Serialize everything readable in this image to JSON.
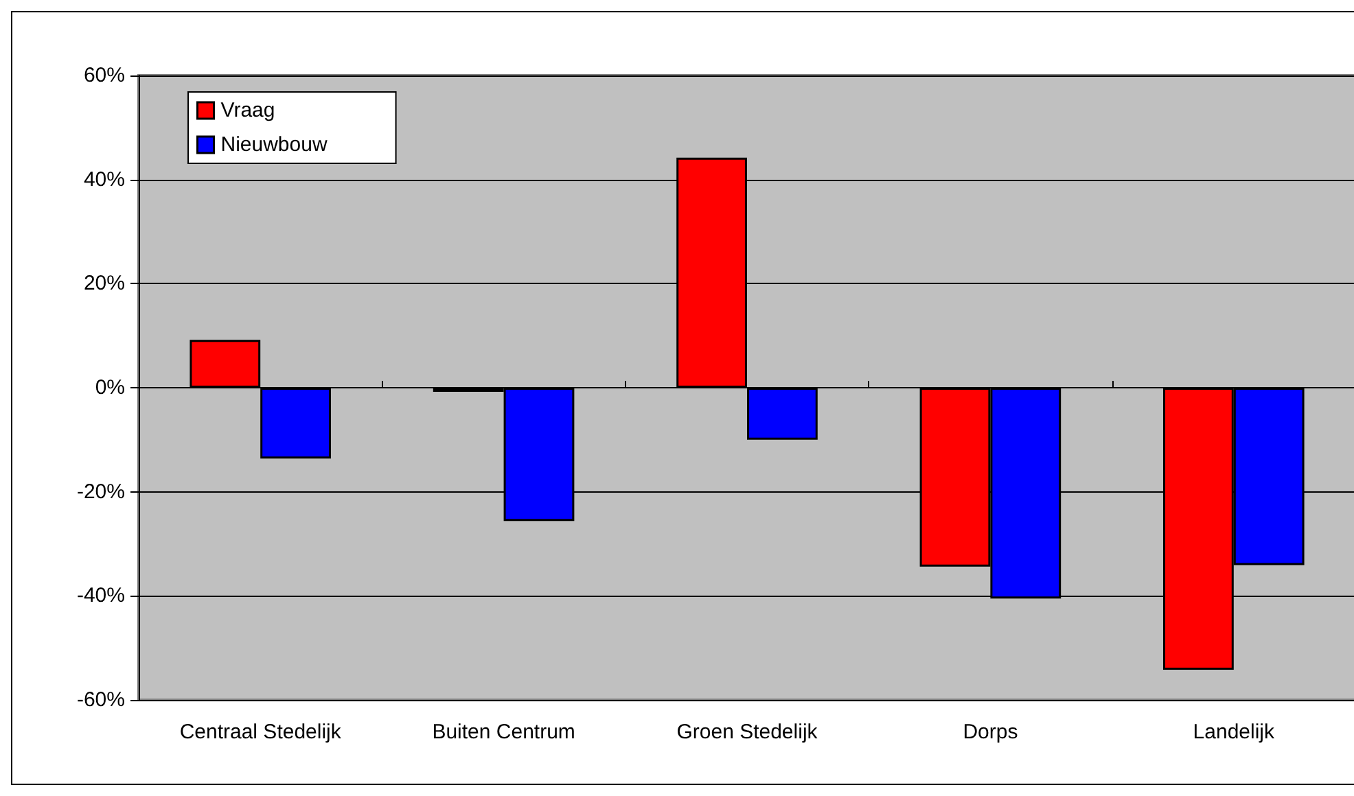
{
  "chart_data": {
    "type": "bar",
    "categories": [
      "Centraal Stedelijk",
      "Buiten Centrum",
      "Groen Stedelijk",
      "Dorps",
      "Landelijk"
    ],
    "series": [
      {
        "name": "Vraag",
        "color": "#ff0000",
        "values": [
          9.2,
          -0.8,
          44.2,
          -34.4,
          -54.2
        ]
      },
      {
        "name": "Nieuwbouw",
        "color": "#0000ff",
        "values": [
          -13.6,
          -25.6,
          -10.0,
          -40.5,
          -34.1
        ]
      }
    ],
    "ylim": [
      -60,
      60
    ],
    "yticks": [
      {
        "value": -60,
        "label": "-60%"
      },
      {
        "value": -40,
        "label": "-40%"
      },
      {
        "value": -20,
        "label": "-20%"
      },
      {
        "value": 0,
        "label": "0%"
      },
      {
        "value": 20,
        "label": "20%"
      },
      {
        "value": 40,
        "label": "40%"
      },
      {
        "value": 60,
        "label": "60%"
      }
    ],
    "grid": "y",
    "legend": "top left"
  }
}
